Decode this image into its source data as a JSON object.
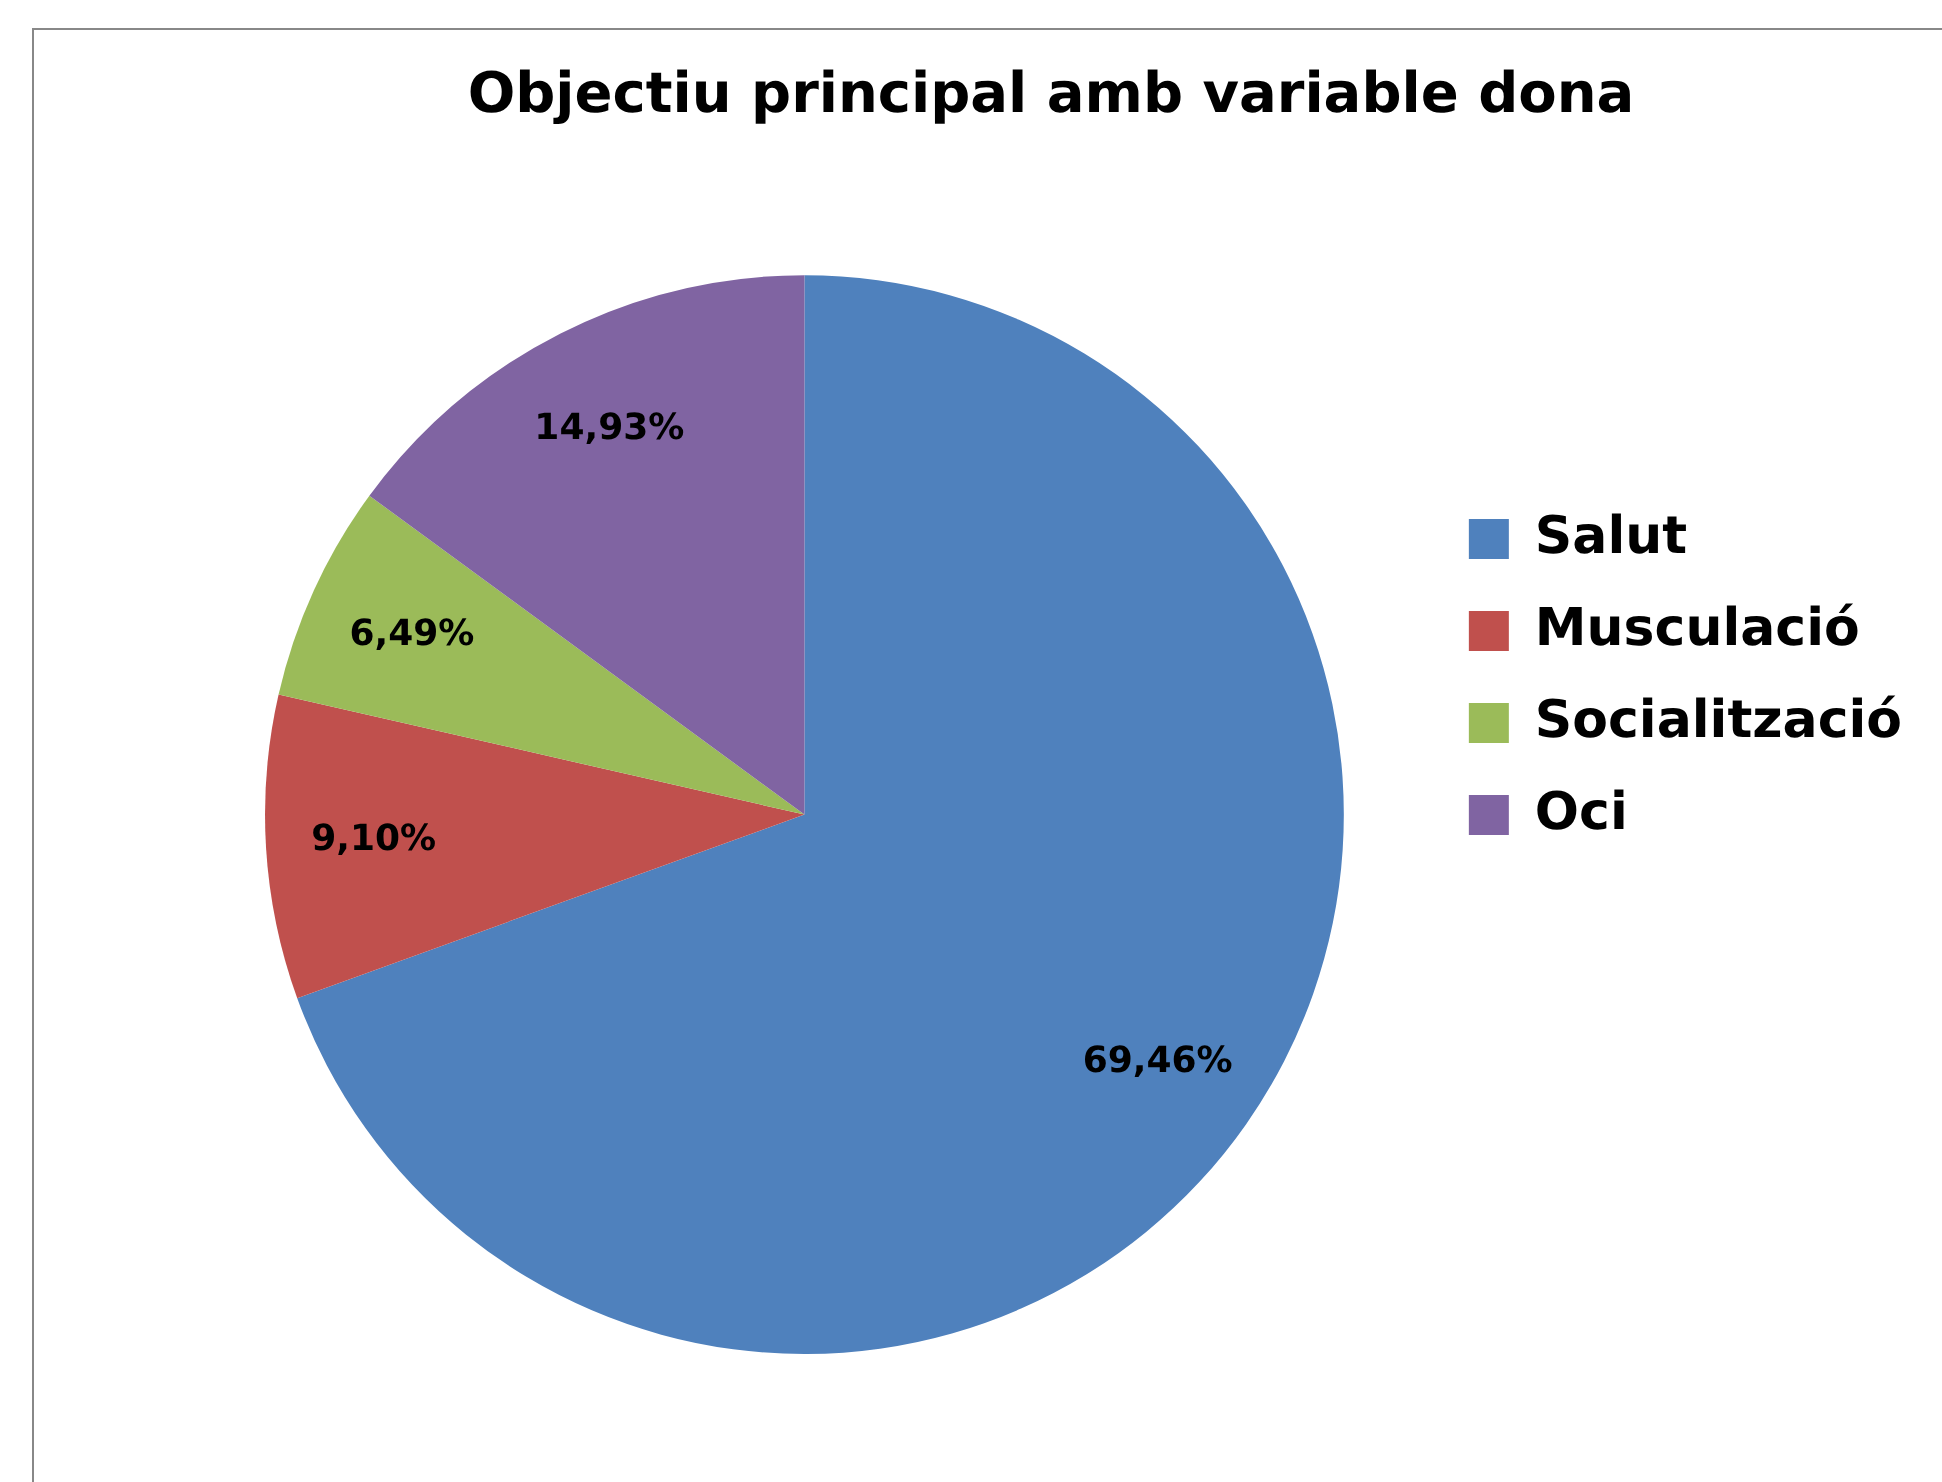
{
  "chart_data": {
    "type": "pie",
    "title": "Objectiu principal amb variable dona",
    "categories": [
      "Salut",
      "Musculació",
      "Socialització",
      "Oci"
    ],
    "values": [
      69.46,
      9.1,
      6.49,
      14.93
    ],
    "colors": [
      "#4f81bd",
      "#c0504d",
      "#9bbb59",
      "#8064a2"
    ],
    "value_labels": [
      "69,46%",
      "9,10%",
      "6,49%",
      "14,93%"
    ],
    "legend": "right"
  }
}
